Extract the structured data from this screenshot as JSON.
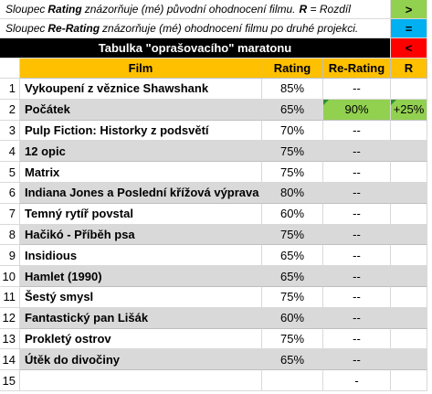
{
  "legend": {
    "line1_prefix": "Sloupec ",
    "line1_key": "Rating",
    "line1_rest": " znázorňuje (mé) původní ohodnocení filmu.",
    "line1_r_key": "R",
    "line1_r_rest": " = Rozdíl",
    "line2_prefix": "Sloupec ",
    "line2_key": "Re-Rating",
    "line2_rest": " znázorňuje (mé) ohodnocení filmu po druhé projekci.",
    "symbols": [
      ">",
      "=",
      "<"
    ],
    "symbol_colors": [
      "#92d050",
      "#00b0f0",
      "#ff0000"
    ]
  },
  "title": "Tabulka \"oprašovacího\" maratonu",
  "headers": {
    "film": "Film",
    "rating": "Rating",
    "rerating": "Re-Rating",
    "r": "R"
  },
  "rows": [
    {
      "n": "1",
      "film": "Vykoupení z věznice Shawshank",
      "rating": "85%",
      "rerating": "--",
      "r": ""
    },
    {
      "n": "2",
      "film": "Počátek",
      "rating": "65%",
      "rerating": "90%",
      "r": "+25%"
    },
    {
      "n": "3",
      "film": "Pulp Fiction: Historky z podsvětí",
      "rating": "70%",
      "rerating": "--",
      "r": ""
    },
    {
      "n": "4",
      "film": "12 opic",
      "rating": "75%",
      "rerating": "--",
      "r": ""
    },
    {
      "n": "5",
      "film": "Matrix",
      "rating": "75%",
      "rerating": "--",
      "r": ""
    },
    {
      "n": "6",
      "film": "Indiana Jones a Poslední křížová výprava",
      "rating": "80%",
      "rerating": "--",
      "r": ""
    },
    {
      "n": "7",
      "film": "Temný rytíř povstal",
      "rating": "60%",
      "rerating": "--",
      "r": ""
    },
    {
      "n": "8",
      "film": "Hačikó - Příběh psa",
      "rating": "75%",
      "rerating": "--",
      "r": ""
    },
    {
      "n": "9",
      "film": "Insidious",
      "rating": "65%",
      "rerating": "--",
      "r": ""
    },
    {
      "n": "10",
      "film": "Hamlet (1990)",
      "rating": "65%",
      "rerating": "--",
      "r": ""
    },
    {
      "n": "11",
      "film": "Šestý smysl",
      "rating": "75%",
      "rerating": "--",
      "r": ""
    },
    {
      "n": "12",
      "film": "Fantastický pan Lišák",
      "rating": "60%",
      "rerating": "--",
      "r": ""
    },
    {
      "n": "13",
      "film": "Prokletý ostrov",
      "rating": "75%",
      "rerating": "--",
      "r": ""
    },
    {
      "n": "14",
      "film": "Útěk do divočiny",
      "rating": "65%",
      "rerating": "--",
      "r": ""
    },
    {
      "n": "15",
      "film": "",
      "rating": "",
      "rerating": "-",
      "r": ""
    }
  ]
}
